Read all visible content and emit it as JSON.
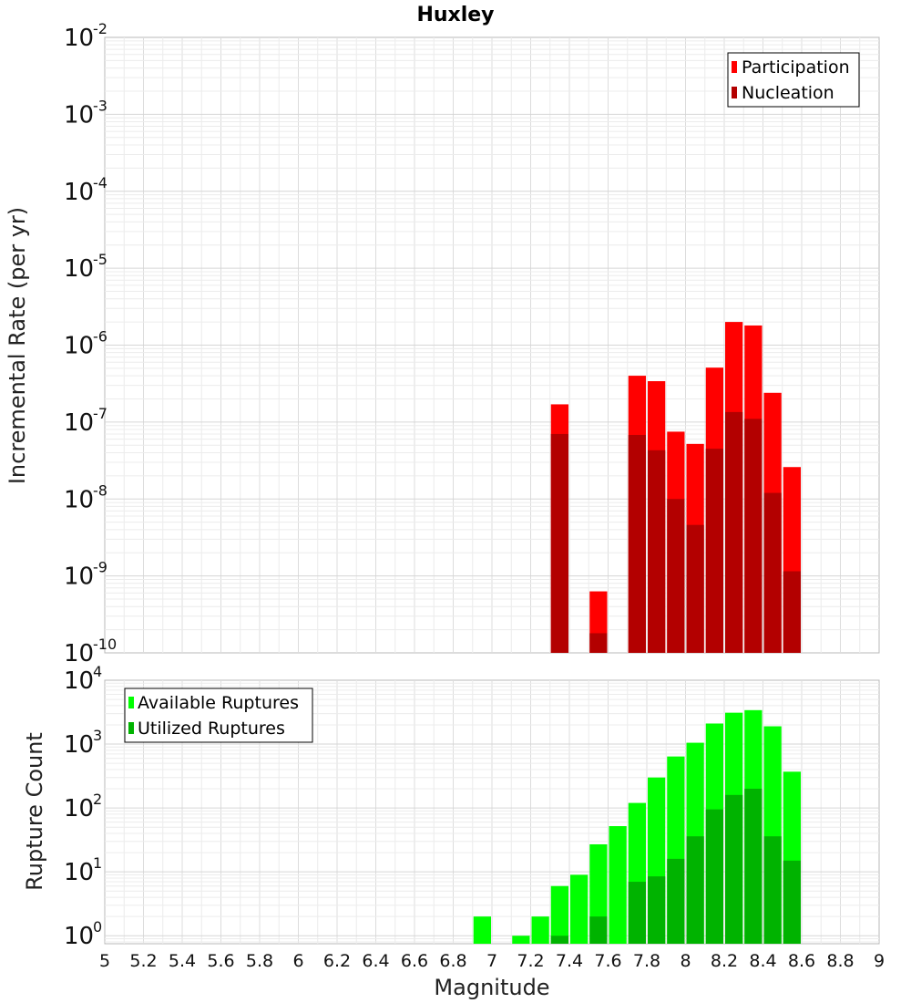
{
  "chart_data": [
    {
      "type": "bar",
      "title": "Huxley",
      "xlabel": "",
      "ylabel": "Incremental Rate (per yr)",
      "xlim": [
        5,
        9
      ],
      "ylim": [
        1e-10,
        0.01
      ],
      "yscale": "log",
      "bar_width": 0.1,
      "grid": true,
      "legend_position": "top-right",
      "y_ticks": [
        {
          "value": 1e-10,
          "base": "10",
          "exp": "-10"
        },
        {
          "value": 1e-09,
          "base": "10",
          "exp": "-9"
        },
        {
          "value": 1e-08,
          "base": "10",
          "exp": "-8"
        },
        {
          "value": 1e-07,
          "base": "10",
          "exp": "-7"
        },
        {
          "value": 1e-06,
          "base": "10",
          "exp": "-6"
        },
        {
          "value": 1e-05,
          "base": "10",
          "exp": "-5"
        },
        {
          "value": 0.0001,
          "base": "10",
          "exp": "-4"
        },
        {
          "value": 0.001,
          "base": "10",
          "exp": "-3"
        },
        {
          "value": 0.01,
          "base": "10",
          "exp": "-2"
        }
      ],
      "series": [
        {
          "name": "Participation",
          "color": "#ff0000",
          "points": [
            {
              "x": 7.35,
              "y": 1.7e-07
            },
            {
              "x": 7.55,
              "y": 6.3e-10
            },
            {
              "x": 7.75,
              "y": 4e-07
            },
            {
              "x": 7.85,
              "y": 3.4e-07
            },
            {
              "x": 7.95,
              "y": 7.5e-08
            },
            {
              "x": 8.05,
              "y": 5.2e-08
            },
            {
              "x": 8.15,
              "y": 5.1e-07
            },
            {
              "x": 8.25,
              "y": 2e-06
            },
            {
              "x": 8.35,
              "y": 1.8e-06
            },
            {
              "x": 8.45,
              "y": 2.4e-07
            },
            {
              "x": 8.55,
              "y": 2.6e-08
            }
          ]
        },
        {
          "name": "Nucleation",
          "color": "#b30000",
          "points": [
            {
              "x": 7.35,
              "y": 7e-08
            },
            {
              "x": 7.55,
              "y": 1.8e-10
            },
            {
              "x": 7.75,
              "y": 6.8e-08
            },
            {
              "x": 7.85,
              "y": 4.3e-08
            },
            {
              "x": 7.95,
              "y": 1e-08
            },
            {
              "x": 8.05,
              "y": 4.6e-09
            },
            {
              "x": 8.15,
              "y": 4.5e-08
            },
            {
              "x": 8.25,
              "y": 1.35e-07
            },
            {
              "x": 8.35,
              "y": 1.1e-07
            },
            {
              "x": 8.45,
              "y": 1.2e-08
            },
            {
              "x": 8.55,
              "y": 1.15e-09
            }
          ]
        }
      ]
    },
    {
      "type": "bar",
      "title": "",
      "xlabel": "Magnitude",
      "ylabel": "Rupture Count",
      "xlim": [
        5,
        9
      ],
      "ylim": [
        0.75,
        10000
      ],
      "yscale": "log",
      "bar_width": 0.1,
      "grid": true,
      "legend_position": "top-left",
      "x_ticks": [
        "5",
        "5.2",
        "5.4",
        "5.6",
        "5.8",
        "6",
        "6.2",
        "6.4",
        "6.6",
        "6.8",
        "7",
        "7.2",
        "7.4",
        "7.6",
        "7.8",
        "8",
        "8.2",
        "8.4",
        "8.6",
        "8.8",
        "9"
      ],
      "y_ticks": [
        {
          "value": 1,
          "base": "10",
          "exp": "0"
        },
        {
          "value": 10,
          "base": "10",
          "exp": "1"
        },
        {
          "value": 100,
          "base": "10",
          "exp": "2"
        },
        {
          "value": 1000,
          "base": "10",
          "exp": "3"
        },
        {
          "value": 10000,
          "base": "10",
          "exp": "4"
        }
      ],
      "series": [
        {
          "name": "Available Ruptures",
          "color": "#00ff00",
          "points": [
            {
              "x": 6.95,
              "y": 2
            },
            {
              "x": 7.15,
              "y": 1
            },
            {
              "x": 7.25,
              "y": 2
            },
            {
              "x": 7.35,
              "y": 6
            },
            {
              "x": 7.45,
              "y": 9
            },
            {
              "x": 7.55,
              "y": 27
            },
            {
              "x": 7.65,
              "y": 52
            },
            {
              "x": 7.75,
              "y": 120
            },
            {
              "x": 7.85,
              "y": 300
            },
            {
              "x": 7.95,
              "y": 640
            },
            {
              "x": 8.05,
              "y": 1050
            },
            {
              "x": 8.15,
              "y": 2100
            },
            {
              "x": 8.25,
              "y": 3100
            },
            {
              "x": 8.35,
              "y": 3400
            },
            {
              "x": 8.45,
              "y": 1900
            },
            {
              "x": 8.55,
              "y": 370
            }
          ]
        },
        {
          "name": "Utilized Ruptures",
          "color": "#00b300",
          "points": [
            {
              "x": 7.35,
              "y": 1
            },
            {
              "x": 7.55,
              "y": 2
            },
            {
              "x": 7.75,
              "y": 7
            },
            {
              "x": 7.85,
              "y": 8.5
            },
            {
              "x": 7.95,
              "y": 16
            },
            {
              "x": 8.05,
              "y": 36
            },
            {
              "x": 8.15,
              "y": 95
            },
            {
              "x": 8.25,
              "y": 160
            },
            {
              "x": 8.35,
              "y": 200
            },
            {
              "x": 8.45,
              "y": 36
            },
            {
              "x": 8.55,
              "y": 15
            }
          ]
        }
      ]
    }
  ]
}
